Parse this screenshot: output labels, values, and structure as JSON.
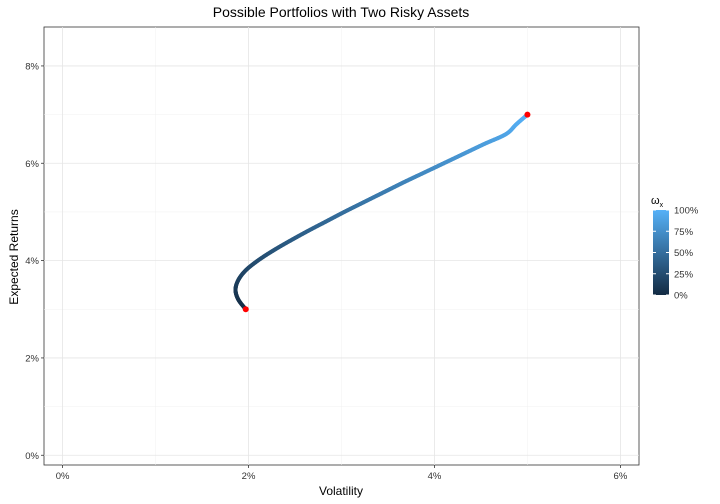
{
  "chart_data": {
    "type": "line",
    "title": "Possible Portfolios with Two Risky Assets",
    "xlabel": "Volatility",
    "ylabel": "Expected Returns",
    "xlim": [
      -0.002,
      0.062
    ],
    "ylim": [
      -0.002,
      0.088
    ],
    "x_ticks": [
      0,
      0.02,
      0.04,
      0.06
    ],
    "x_tick_labels": [
      "0%",
      "2%",
      "4%",
      "6%"
    ],
    "y_ticks": [
      0,
      0.02,
      0.04,
      0.06,
      0.08
    ],
    "y_tick_labels": [
      "0%",
      "2%",
      "4%",
      "6%",
      "8%"
    ],
    "grid": true,
    "legend": {
      "title_base": "ω",
      "title_sub": "x",
      "position": "right",
      "labels": [
        "100%",
        "75%",
        "50%",
        "25%",
        "0%"
      ],
      "values": [
        1.0,
        0.75,
        0.5,
        0.25,
        0.0
      ],
      "color_low": "#132B43",
      "color_high": "#56B1F7"
    },
    "endpoints": [
      {
        "x": 0.0197,
        "y": 0.03
      },
      {
        "x": 0.05,
        "y": 0.07
      }
    ],
    "endpoint_color": "#FF0000",
    "series": [
      {
        "weight": [
          0,
          0.05,
          0.1,
          0.15,
          0.2,
          0.25,
          0.3,
          0.35,
          0.4,
          0.45,
          0.5,
          0.55,
          0.6,
          0.65,
          0.7,
          0.75,
          0.8,
          0.85,
          0.9,
          0.95,
          1
        ],
        "x": [
          0.0197,
          0.0189,
          0.0186,
          0.0189,
          0.0197,
          0.021,
          0.0226,
          0.0244,
          0.0263,
          0.0283,
          0.0303,
          0.0324,
          0.0345,
          0.0366,
          0.0388,
          0.041,
          0.0432,
          0.0454,
          0.0477,
          0.0488,
          0.05
        ],
        "y": [
          0.03,
          0.032,
          0.034,
          0.036,
          0.038,
          0.04,
          0.042,
          0.044,
          0.046,
          0.048,
          0.05,
          0.052,
          0.054,
          0.056,
          0.058,
          0.06,
          0.062,
          0.064,
          0.066,
          0.068,
          0.07
        ]
      }
    ]
  }
}
